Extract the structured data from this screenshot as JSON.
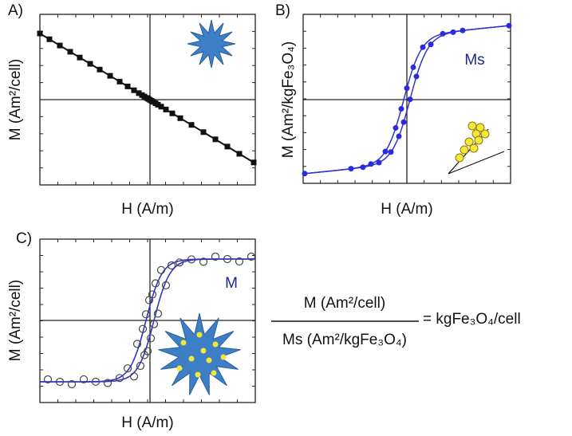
{
  "panels": [
    {
      "label": "A)",
      "y_label": "M (Am²/cell)",
      "x_label": "H (A/m)"
    },
    {
      "label": "B)",
      "y_label": "M (Am²/kgFe₃O₄)",
      "x_label": "H (A/m)",
      "annotation": "Ms"
    },
    {
      "label": "C)",
      "y_label": "M (Am²/cell)",
      "x_label": "H (A/m)",
      "annotation": "M"
    }
  ],
  "equation": {
    "numerator": "M (Am²/cell)",
    "denominator": "Ms (Am²/kgFe₃O₄)",
    "result": "= kgFe₃O₄/cell"
  }
}
